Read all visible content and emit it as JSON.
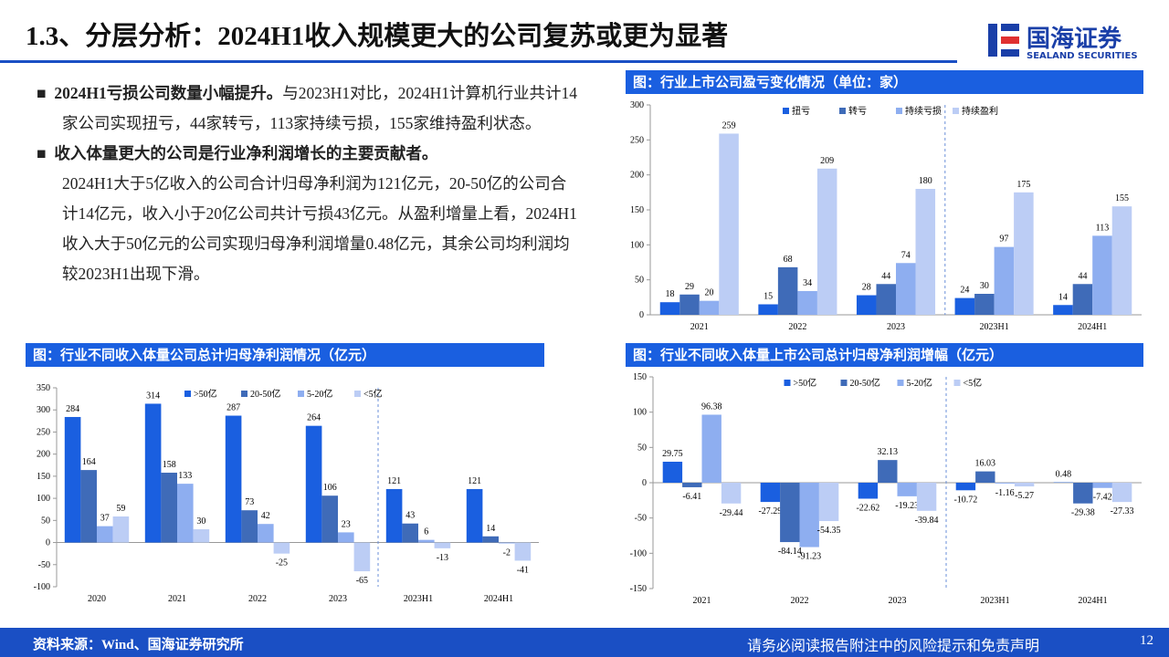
{
  "header": {
    "title": "1.3、分层分析：2024H1收入规模更大的公司复苏或更为显著",
    "logo_cn": "国海证券",
    "logo_en": "SEALAND SECURITIES"
  },
  "bullets": [
    {
      "heading": "2024H1亏损公司数量小幅提升。",
      "text": "与2023H1对比，2024H1计算机行业共计14家公司实现扭亏，44家转亏，113家持续亏损，155家维持盈利状态。"
    },
    {
      "heading": "收入体量更大的公司是行业净利润增长的主要贡献者。",
      "text": "2024H1大于5亿收入的公司合计归母净利润为121亿元，20-50亿的公司合计14亿元，收入小于20亿公司共计亏损43亿元。从盈利增量上看，2024H1收入大于50亿元的公司实现归母净利润增量0.48亿元，其余公司均利润均较2023H1出现下滑。"
    }
  ],
  "chart_data": [
    {
      "type": "bar",
      "title": "图：行业上市公司盈亏变化情况（单位：家）",
      "categories": [
        "2021",
        "2022",
        "2023",
        "2023H1",
        "2024H1"
      ],
      "series": [
        {
          "name": "扭亏",
          "color": "#1a5fe0",
          "values": [
            18,
            15,
            28,
            24,
            14
          ]
        },
        {
          "name": "转亏",
          "color": "#3f6bb8",
          "values": [
            29,
            68,
            44,
            30,
            44
          ]
        },
        {
          "name": "持续亏损",
          "color": "#8eaef0",
          "values": [
            20,
            34,
            74,
            97,
            113
          ]
        },
        {
          "name": "持续盈利",
          "color": "#bccdf5",
          "values": [
            259,
            209,
            180,
            175,
            155
          ]
        }
      ],
      "ylim": [
        0,
        300
      ],
      "yticks": [
        0,
        50,
        100,
        150,
        200,
        250,
        300
      ]
    },
    {
      "type": "bar",
      "title": "图：行业不同收入体量公司总计归母净利润情况（亿元）",
      "categories": [
        "2020",
        "2021",
        "2022",
        "2023",
        "2023H1",
        "2024H1"
      ],
      "series": [
        {
          "name": ">50亿",
          "color": "#1a5fe0",
          "values": [
            284,
            314,
            287,
            264,
            121,
            121
          ]
        },
        {
          "name": "20-50亿",
          "color": "#3f6bb8",
          "values": [
            164,
            158,
            73,
            106,
            43,
            14
          ]
        },
        {
          "name": "5-20亿",
          "color": "#8eaef0",
          "values": [
            37,
            133,
            42,
            23,
            6,
            -2
          ]
        },
        {
          "name": "<5亿",
          "color": "#bccdf5",
          "values": [
            59,
            30,
            -25,
            -65,
            -13,
            -41
          ]
        }
      ],
      "ylim": [
        -100,
        350
      ],
      "yticks": [
        -100,
        -50,
        0,
        50,
        100,
        150,
        200,
        250,
        300,
        350
      ]
    },
    {
      "type": "bar",
      "title": "图：行业不同收入体量上市公司总计归母净利润增幅（亿元）",
      "categories": [
        "2021",
        "2022",
        "2023",
        "2023H1",
        "2024H1"
      ],
      "series": [
        {
          "name": ">50亿",
          "color": "#1a5fe0",
          "values": [
            29.75,
            -27.29,
            -22.62,
            -10.72,
            0.48
          ]
        },
        {
          "name": "20-50亿",
          "color": "#3f6bb8",
          "values": [
            -6.41,
            -84.14,
            32.13,
            16.03,
            -29.38
          ]
        },
        {
          "name": "5-20亿",
          "color": "#8eaef0",
          "values": [
            96.38,
            -91.23,
            -19.23,
            -1.16,
            -7.42
          ]
        },
        {
          "name": "<5亿",
          "color": "#bccdf5",
          "values": [
            -29.44,
            -54.35,
            -39.84,
            -5.27,
            -27.33
          ]
        }
      ],
      "ylim": [
        -150,
        150
      ],
      "yticks": [
        -150,
        -100,
        -50,
        0,
        50,
        100,
        150
      ]
    }
  ],
  "footer": {
    "source": "资料来源：Wind、国海证券研究所",
    "disclaimer": "请务必阅读报告附注中的风险提示和免责声明",
    "page": "12"
  }
}
